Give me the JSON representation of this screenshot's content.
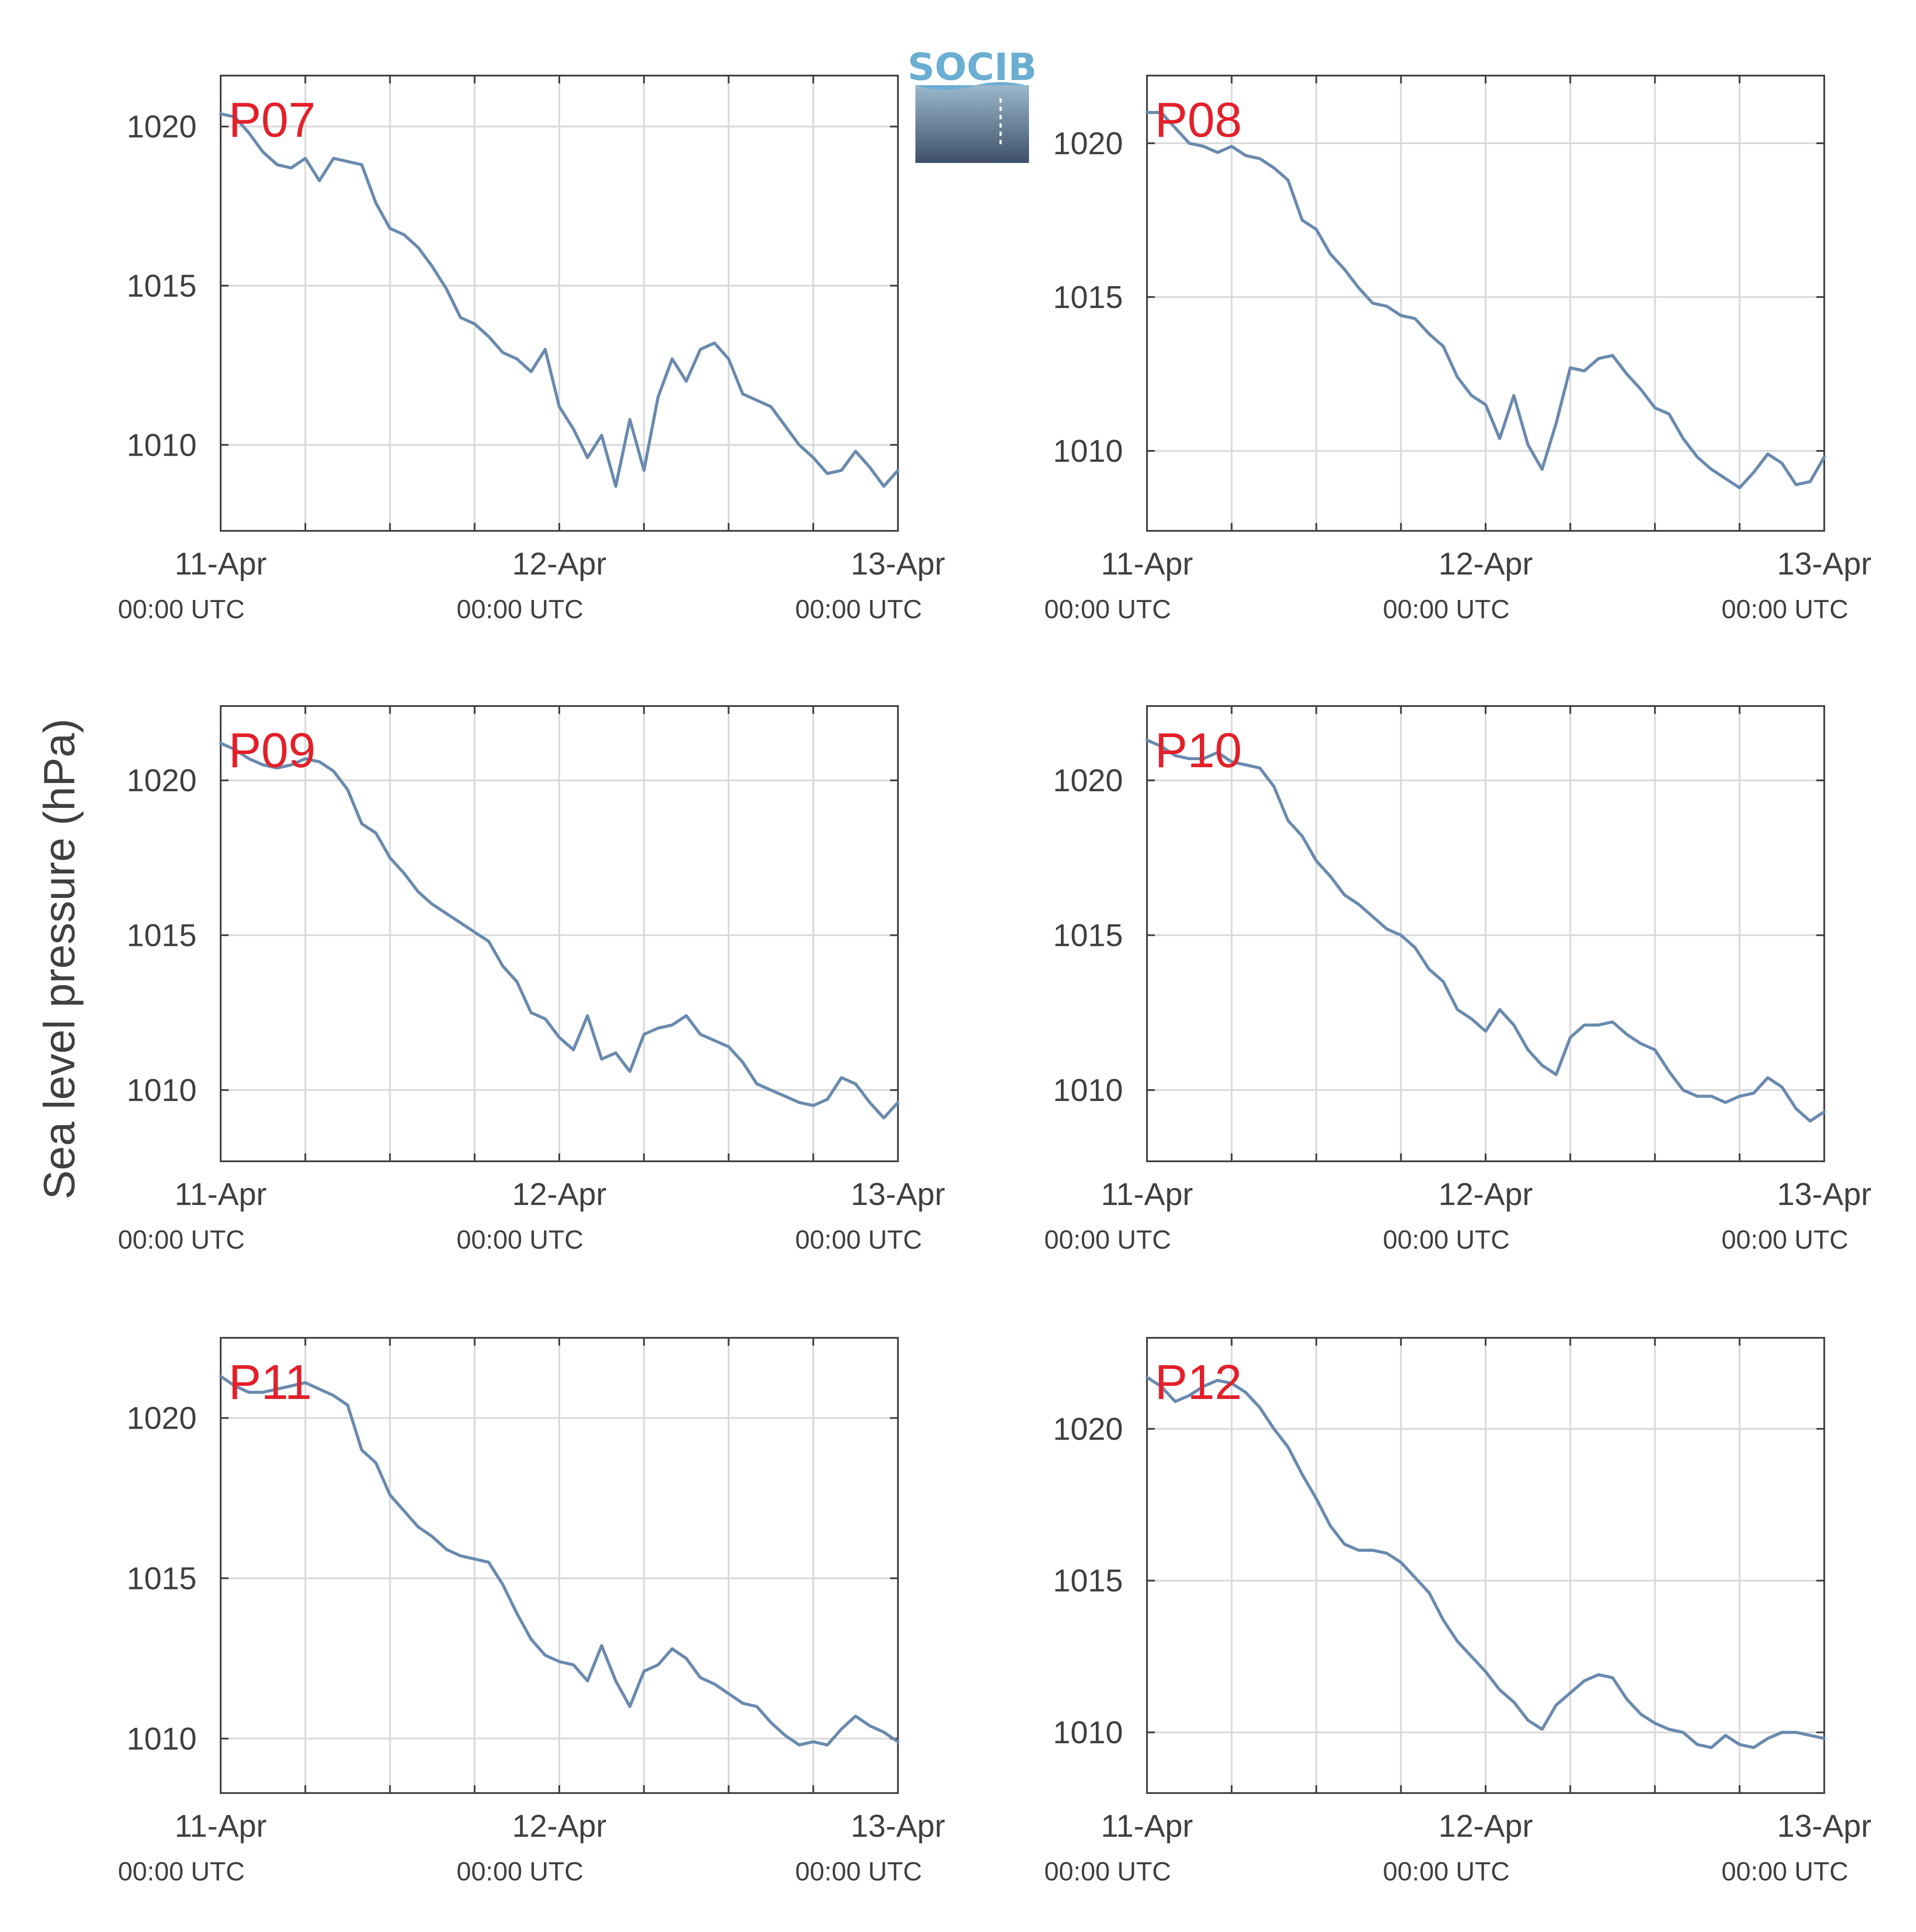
{
  "figure": {
    "ylabel": "Sea level pressure (hPa)",
    "logo_text": "SOCIB"
  },
  "colors": {
    "line": "#6a8aaf",
    "grid": "#d9d9d9",
    "axis": "#404040",
    "panel_label": "#e3202a",
    "logo_top": "#6aaed2",
    "logo_bottom": "#3e5068"
  },
  "chart_data": [
    {
      "type": "line",
      "panel_label": "P07",
      "x_ticks": [
        {
          "label": "11-Apr",
          "sublabel": "00:00 UTC"
        },
        {
          "label": "12-Apr",
          "sublabel": "00:00 UTC"
        },
        {
          "label": "13-Apr",
          "sublabel": "00:00 UTC"
        }
      ],
      "xlim_hours": [
        0,
        48
      ],
      "ylim": [
        1007.3,
        1021.6
      ],
      "yticks": [
        1010,
        1015,
        1020
      ],
      "x_hours": [
        0,
        1,
        2,
        3,
        4,
        5,
        6,
        7,
        8,
        9,
        10,
        11,
        12,
        13,
        14,
        15,
        16,
        17,
        18,
        19,
        20,
        21,
        22,
        23,
        24,
        25,
        26,
        27,
        28,
        29,
        30,
        31,
        32,
        33,
        34,
        35,
        36,
        37,
        38,
        39,
        40,
        41,
        42,
        43,
        44,
        45,
        46,
        47,
        48
      ],
      "values": [
        1020.4,
        1020.3,
        1019.8,
        1019.2,
        1018.8,
        1018.7,
        1019.0,
        1018.3,
        1019.0,
        1018.9,
        1018.8,
        1017.6,
        1016.8,
        1016.6,
        1016.2,
        1015.6,
        1014.9,
        1014.0,
        1013.8,
        1013.4,
        1012.9,
        1012.7,
        1012.3,
        1013.0,
        1011.2,
        1010.5,
        1009.6,
        1010.3,
        1008.7,
        1010.8,
        1009.2,
        1011.5,
        1012.7,
        1012.0,
        1013.0,
        1013.2,
        1012.7,
        1011.6,
        1011.4,
        1011.2,
        1010.6,
        1010.0,
        1009.6,
        1009.1,
        1009.2,
        1009.8,
        1009.3,
        1008.7,
        1009.2
      ]
    },
    {
      "type": "line",
      "panel_label": "P08",
      "x_ticks": [
        {
          "label": "11-Apr",
          "sublabel": "00:00 UTC"
        },
        {
          "label": "12-Apr",
          "sublabel": "00:00 UTC"
        },
        {
          "label": "13-Apr",
          "sublabel": "00:00 UTC"
        }
      ],
      "xlim_hours": [
        0,
        48
      ],
      "ylim": [
        1007.4,
        1022.2
      ],
      "yticks": [
        1010,
        1015,
        1020
      ],
      "x_hours": [
        0,
        1,
        2,
        3,
        4,
        5,
        6,
        7,
        8,
        9,
        10,
        11,
        12,
        13,
        14,
        15,
        16,
        17,
        18,
        19,
        20,
        21,
        22,
        23,
        24,
        25,
        26,
        27,
        28,
        29,
        30,
        31,
        32,
        33,
        34,
        35,
        36,
        37,
        38,
        39,
        40,
        41,
        42,
        43,
        44,
        45,
        46,
        47,
        48
      ],
      "values": [
        1021.0,
        1021.0,
        1020.5,
        1020.0,
        1019.9,
        1019.7,
        1019.9,
        1019.6,
        1019.5,
        1019.2,
        1018.8,
        1017.5,
        1017.2,
        1016.4,
        1015.9,
        1015.3,
        1014.8,
        1014.7,
        1014.4,
        1014.3,
        1013.8,
        1013.4,
        1012.4,
        1011.8,
        1011.5,
        1010.4,
        1011.8,
        1010.2,
        1009.4,
        1010.9,
        1012.7,
        1012.6,
        1013.0,
        1013.1,
        1012.5,
        1012.0,
        1011.4,
        1011.2,
        1010.4,
        1009.8,
        1009.4,
        1009.1,
        1008.8,
        1009.3,
        1009.9,
        1009.6,
        1008.9,
        1009.0,
        1009.8
      ]
    },
    {
      "type": "line",
      "panel_label": "P09",
      "x_ticks": [
        {
          "label": "11-Apr",
          "sublabel": "00:00 UTC"
        },
        {
          "label": "12-Apr",
          "sublabel": "00:00 UTC"
        },
        {
          "label": "13-Apr",
          "sublabel": "00:00 UTC"
        }
      ],
      "xlim_hours": [
        0,
        48
      ],
      "ylim": [
        1007.7,
        1022.4
      ],
      "yticks": [
        1010,
        1015,
        1020
      ],
      "x_hours": [
        0,
        1,
        2,
        3,
        4,
        5,
        6,
        7,
        8,
        9,
        10,
        11,
        12,
        13,
        14,
        15,
        16,
        17,
        18,
        19,
        20,
        21,
        22,
        23,
        24,
        25,
        26,
        27,
        28,
        29,
        30,
        31,
        32,
        33,
        34,
        35,
        36,
        37,
        38,
        39,
        40,
        41,
        42,
        43,
        44,
        45,
        46,
        47,
        48
      ],
      "values": [
        1021.2,
        1021.0,
        1020.7,
        1020.5,
        1020.4,
        1020.5,
        1020.7,
        1020.6,
        1020.3,
        1019.7,
        1018.6,
        1018.3,
        1017.5,
        1017.0,
        1016.4,
        1016.0,
        1015.7,
        1015.4,
        1015.1,
        1014.8,
        1014.0,
        1013.5,
        1012.5,
        1012.3,
        1011.7,
        1011.3,
        1012.4,
        1011.0,
        1011.2,
        1010.6,
        1011.8,
        1012.0,
        1012.1,
        1012.4,
        1011.8,
        1011.6,
        1011.4,
        1010.9,
        1010.2,
        1010.0,
        1009.8,
        1009.6,
        1009.5,
        1009.7,
        1010.4,
        1010.2,
        1009.6,
        1009.1,
        1009.6
      ]
    },
    {
      "type": "line",
      "panel_label": "P10",
      "x_ticks": [
        {
          "label": "11-Apr",
          "sublabel": "00:00 UTC"
        },
        {
          "label": "12-Apr",
          "sublabel": "00:00 UTC"
        },
        {
          "label": "13-Apr",
          "sublabel": "00:00 UTC"
        }
      ],
      "xlim_hours": [
        0,
        48
      ],
      "ylim": [
        1007.7,
        1022.4
      ],
      "yticks": [
        1010,
        1015,
        1020
      ],
      "x_hours": [
        0,
        1,
        2,
        3,
        4,
        5,
        6,
        7,
        8,
        9,
        10,
        11,
        12,
        13,
        14,
        15,
        16,
        17,
        18,
        19,
        20,
        21,
        22,
        23,
        24,
        25,
        26,
        27,
        28,
        29,
        30,
        31,
        32,
        33,
        34,
        35,
        36,
        37,
        38,
        39,
        40,
        41,
        42,
        43,
        44,
        45,
        46,
        47,
        48
      ],
      "values": [
        1021.3,
        1021.1,
        1020.8,
        1020.7,
        1020.7,
        1020.9,
        1020.6,
        1020.5,
        1020.4,
        1019.8,
        1018.7,
        1018.2,
        1017.4,
        1016.9,
        1016.3,
        1016.0,
        1015.6,
        1015.2,
        1015.0,
        1014.6,
        1013.9,
        1013.5,
        1012.6,
        1012.3,
        1011.9,
        1012.6,
        1012.1,
        1011.3,
        1010.8,
        1010.5,
        1011.7,
        1012.1,
        1012.1,
        1012.2,
        1011.8,
        1011.5,
        1011.3,
        1010.6,
        1010.0,
        1009.8,
        1009.8,
        1009.6,
        1009.8,
        1009.9,
        1010.4,
        1010.1,
        1009.4,
        1009.0,
        1009.3
      ]
    },
    {
      "type": "line",
      "panel_label": "P11",
      "x_ticks": [
        {
          "label": "11-Apr",
          "sublabel": "00:00 UTC"
        },
        {
          "label": "12-Apr",
          "sublabel": "00:00 UTC"
        },
        {
          "label": "13-Apr",
          "sublabel": "00:00 UTC"
        }
      ],
      "xlim_hours": [
        0,
        48
      ],
      "ylim": [
        1008.3,
        1022.5
      ],
      "yticks": [
        1010,
        1015,
        1020
      ],
      "x_hours": [
        0,
        1,
        2,
        3,
        4,
        5,
        6,
        7,
        8,
        9,
        10,
        11,
        12,
        13,
        14,
        15,
        16,
        17,
        18,
        19,
        20,
        21,
        22,
        23,
        24,
        25,
        26,
        27,
        28,
        29,
        30,
        31,
        32,
        33,
        34,
        35,
        36,
        37,
        38,
        39,
        40,
        41,
        42,
        43,
        44,
        45,
        46,
        47,
        48
      ],
      "values": [
        1021.3,
        1021.0,
        1020.8,
        1020.8,
        1020.9,
        1021.0,
        1021.1,
        1020.9,
        1020.7,
        1020.4,
        1019.0,
        1018.6,
        1017.6,
        1017.1,
        1016.6,
        1016.3,
        1015.9,
        1015.7,
        1015.6,
        1015.5,
        1014.8,
        1013.9,
        1013.1,
        1012.6,
        1012.4,
        1012.3,
        1011.8,
        1012.9,
        1011.8,
        1011.0,
        1012.1,
        1012.3,
        1012.8,
        1012.5,
        1011.9,
        1011.7,
        1011.4,
        1011.1,
        1011.0,
        1010.5,
        1010.1,
        1009.8,
        1009.9,
        1009.8,
        1010.3,
        1010.7,
        1010.4,
        1010.2,
        1009.9
      ]
    },
    {
      "type": "line",
      "panel_label": "P12",
      "x_ticks": [
        {
          "label": "11-Apr",
          "sublabel": "00:00 UTC"
        },
        {
          "label": "12-Apr",
          "sublabel": "00:00 UTC"
        },
        {
          "label": "13-Apr",
          "sublabel": "00:00 UTC"
        }
      ],
      "xlim_hours": [
        0,
        48
      ],
      "ylim": [
        1008.0,
        1023.0
      ],
      "yticks": [
        1010,
        1015,
        1020
      ],
      "x_hours": [
        0,
        1,
        2,
        3,
        4,
        5,
        6,
        7,
        8,
        9,
        10,
        11,
        12,
        13,
        14,
        15,
        16,
        17,
        18,
        19,
        20,
        21,
        22,
        23,
        24,
        25,
        26,
        27,
        28,
        29,
        30,
        31,
        32,
        33,
        34,
        35,
        36,
        37,
        38,
        39,
        40,
        41,
        42,
        43,
        44,
        45,
        46,
        47,
        48
      ],
      "values": [
        1021.7,
        1021.4,
        1020.9,
        1021.1,
        1021.4,
        1021.6,
        1021.5,
        1021.2,
        1020.7,
        1020.0,
        1019.4,
        1018.5,
        1017.7,
        1016.8,
        1016.2,
        1016.0,
        1016.0,
        1015.9,
        1015.6,
        1015.1,
        1014.6,
        1013.7,
        1013.0,
        1012.5,
        1012.0,
        1011.4,
        1011.0,
        1010.4,
        1010.1,
        1010.9,
        1011.3,
        1011.7,
        1011.9,
        1011.8,
        1011.1,
        1010.6,
        1010.3,
        1010.1,
        1010.0,
        1009.6,
        1009.5,
        1009.9,
        1009.6,
        1009.5,
        1009.8,
        1010.0,
        1010.0,
        1009.9,
        1009.8
      ]
    }
  ]
}
